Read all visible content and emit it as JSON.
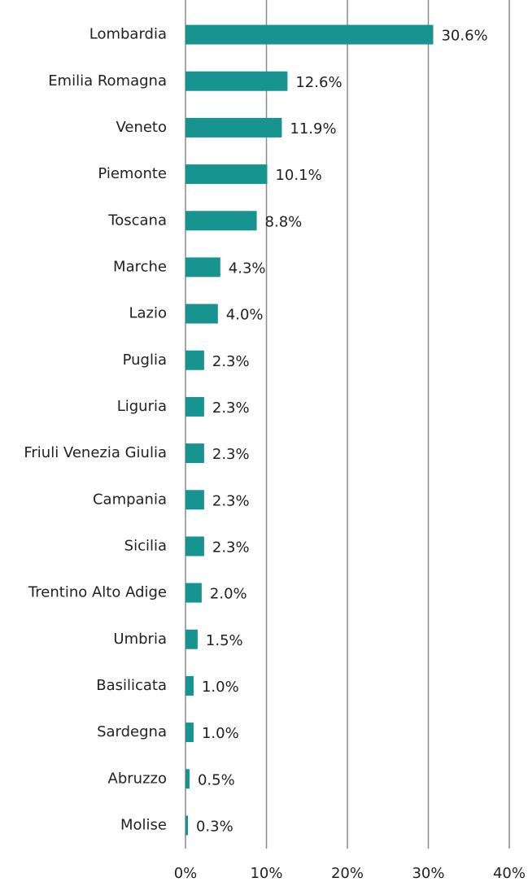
{
  "chart_data": {
    "type": "bar",
    "orientation": "horizontal",
    "categories": [
      "Lombardia",
      "Emilia Romagna",
      "Veneto",
      "Piemonte",
      "Toscana",
      "Marche",
      "Lazio",
      "Puglia",
      "Liguria",
      "Friuli Venezia Giulia",
      "Campania",
      "Sicilia",
      "Trentino Alto Adige",
      "Umbria",
      "Basilicata",
      "Sardegna",
      "Abruzzo",
      "Molise"
    ],
    "values": [
      30.6,
      12.6,
      11.9,
      10.1,
      8.8,
      4.3,
      4.0,
      2.3,
      2.3,
      2.3,
      2.3,
      2.3,
      2.0,
      1.5,
      1.0,
      1.0,
      0.5,
      0.3
    ],
    "value_labels": [
      "30.6%",
      "12.6%",
      "11.9%",
      "10.1%",
      "8.8%",
      "4.3%",
      "4.0%",
      "2.3%",
      "2.3%",
      "2.3%",
      "2.3%",
      "2.3%",
      "2.0%",
      "1.5%",
      "1.0%",
      "1.0%",
      "0.5%",
      "0.3%"
    ],
    "color": "#17948f",
    "xlim": [
      0,
      40
    ],
    "xticks": [
      {
        "value": 0,
        "label": "0%"
      },
      {
        "value": 10,
        "label": "10%"
      },
      {
        "value": 20,
        "label": "20%"
      },
      {
        "value": 30,
        "label": "30%"
      },
      {
        "value": 40,
        "label": "40%"
      }
    ],
    "grid": true
  }
}
